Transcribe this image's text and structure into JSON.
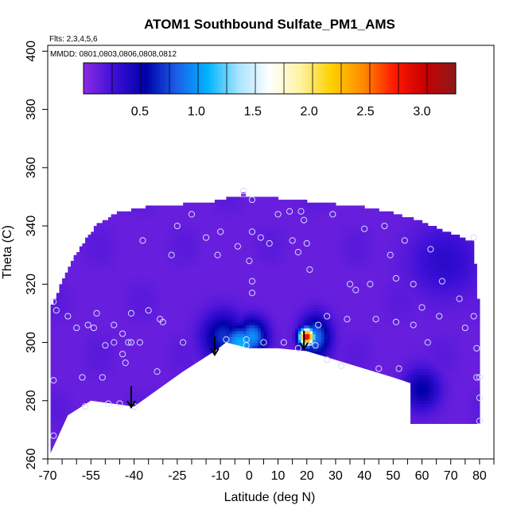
{
  "chart_data": {
    "type": "heatmap",
    "title": "ATOM1 Southbound Sulfate_PM1_AMS",
    "flights_note": "Flts: 2,3,4,5,6",
    "dates_note": "MMDD: 0801,0803,0806,0808,0812",
    "xlabel": "Latitude (deg N)",
    "ylabel": "Theta (C)",
    "xlim": [
      -70,
      85
    ],
    "ylim": [
      260,
      402
    ],
    "x_tick_values": [
      -70,
      -55,
      -40,
      -25,
      -10,
      0,
      10,
      20,
      30,
      40,
      50,
      60,
      70,
      80
    ],
    "x_tick_labels": [
      "-70",
      "-55",
      "-40",
      "-25",
      "-10",
      "0",
      "10",
      "20",
      "30",
      "40",
      "50",
      "60",
      "70",
      "80"
    ],
    "x_minor_ticks": [
      -65,
      -60,
      -50,
      -45,
      -35,
      -30,
      -20,
      -15,
      -5,
      5,
      15,
      25,
      35,
      45,
      55,
      65,
      75,
      85
    ],
    "y_tick_values": [
      260,
      280,
      300,
      320,
      340,
      360,
      380,
      400
    ],
    "y_tick_labels": [
      "260",
      "280",
      "300",
      "320",
      "340",
      "360",
      "380",
      "400"
    ],
    "colorbar": {
      "range": [
        0,
        3.3
      ],
      "tick_values": [
        0.5,
        1.0,
        1.5,
        2.0,
        2.5,
        3.0
      ],
      "tick_labels": [
        "0.5",
        "1.0",
        "1.5",
        "2.0",
        "2.5",
        "3.0"
      ],
      "colors": [
        "#8a2be2",
        "#3b0fd6",
        "#0000a8",
        "#1a5fe8",
        "#00b4ff",
        "#a8e4ff",
        "#ffffff",
        "#fff2a0",
        "#ffd000",
        "#ff8c00",
        "#ff1a00",
        "#c80000",
        "#8b1a1a"
      ]
    },
    "background_value": 0.12,
    "envelope_top": [
      [
        -69,
        312
      ],
      [
        -66,
        318
      ],
      [
        -62,
        327
      ],
      [
        -58,
        333
      ],
      [
        -53,
        340
      ],
      [
        -46,
        344
      ],
      [
        -36,
        346
      ],
      [
        -23,
        347
      ],
      [
        -12,
        348
      ],
      [
        -5,
        350
      ],
      [
        2,
        350
      ],
      [
        10,
        349
      ],
      [
        20,
        348
      ],
      [
        30,
        347
      ],
      [
        40,
        346
      ],
      [
        50,
        344
      ],
      [
        60,
        341
      ],
      [
        70,
        337
      ],
      [
        78,
        334
      ],
      [
        79,
        320
      ],
      [
        80,
        310
      ],
      [
        80,
        296
      ],
      [
        80,
        285
      ],
      [
        80,
        271
      ]
    ],
    "terrain": [
      [
        -69,
        262
      ],
      [
        -63,
        275
      ],
      [
        -55,
        280
      ],
      [
        -40,
        278
      ],
      [
        -23,
        290
      ],
      [
        -12,
        297
      ],
      [
        -8,
        300
      ],
      [
        0,
        298
      ],
      [
        10,
        298
      ],
      [
        20,
        297
      ],
      [
        30,
        294
      ],
      [
        40,
        291
      ],
      [
        50,
        288
      ],
      [
        56,
        286
      ],
      [
        56,
        272
      ],
      [
        80,
        272
      ]
    ],
    "features": [
      {
        "lat": -3,
        "theta": 300,
        "value": 1.1,
        "sx": 7,
        "sy": 6
      },
      {
        "lat": -9,
        "theta": 302,
        "value": 0.7,
        "sx": 7,
        "sy": 8
      },
      {
        "lat": 1,
        "theta": 302,
        "value": 1.0,
        "sx": 5,
        "sy": 6
      },
      {
        "lat": 20,
        "theta": 302,
        "value": 3.0,
        "sx": 2.6,
        "sy": 3
      },
      {
        "lat": 23,
        "theta": 302,
        "value": 0.9,
        "sx": 5,
        "sy": 7
      },
      {
        "lat": 60,
        "theta": 284,
        "value": 0.55,
        "sx": 6,
        "sy": 7
      },
      {
        "lat": 68,
        "theta": 328,
        "value": 0.35,
        "sx": 12,
        "sy": 12
      }
    ],
    "clean_regions": [
      {
        "lat": -6,
        "theta": 317,
        "value": 0.04,
        "sx": 10,
        "sy": 10
      },
      {
        "lat": 20,
        "theta": 318,
        "value": 0.05,
        "sx": 6,
        "sy": 9
      }
    ],
    "flight_points": [
      [
        -68,
        268
      ],
      [
        -68,
        287
      ],
      [
        -68,
        314
      ],
      [
        -67,
        311
      ],
      [
        -63,
        309
      ],
      [
        -60,
        305
      ],
      [
        -58,
        288
      ],
      [
        -57,
        278
      ],
      [
        -56,
        306
      ],
      [
        -54,
        305
      ],
      [
        -53,
        310
      ],
      [
        -51,
        288
      ],
      [
        -50,
        299
      ],
      [
        -49,
        279
      ],
      [
        -47,
        306
      ],
      [
        -47,
        300
      ],
      [
        -45,
        279
      ],
      [
        -44,
        303
      ],
      [
        -44,
        296
      ],
      [
        -43,
        293
      ],
      [
        -42,
        300
      ],
      [
        -41,
        310
      ],
      [
        -41,
        300
      ],
      [
        -40,
        278
      ],
      [
        -38,
        300
      ],
      [
        -37,
        335
      ],
      [
        -35,
        311
      ],
      [
        -32,
        290
      ],
      [
        -31,
        308
      ],
      [
        -30,
        307
      ],
      [
        -27,
        330
      ],
      [
        -25,
        340
      ],
      [
        -23,
        300
      ],
      [
        -20,
        344
      ],
      [
        -15,
        336
      ],
      [
        -11,
        330
      ],
      [
        -10,
        338
      ],
      [
        -8,
        301
      ],
      [
        -4,
        333
      ],
      [
        -2,
        352
      ],
      [
        -1,
        299
      ],
      [
        -1,
        301
      ],
      [
        0,
        328
      ],
      [
        1,
        349
      ],
      [
        1,
        338
      ],
      [
        1,
        321
      ],
      [
        1,
        317
      ],
      [
        4,
        336
      ],
      [
        5,
        300
      ],
      [
        7,
        334
      ],
      [
        10,
        344
      ],
      [
        12,
        300
      ],
      [
        14,
        345
      ],
      [
        15,
        335
      ],
      [
        17,
        298
      ],
      [
        17,
        331
      ],
      [
        18,
        345
      ],
      [
        19,
        342
      ],
      [
        20,
        334
      ],
      [
        21,
        325
      ],
      [
        21,
        300
      ],
      [
        23,
        299
      ],
      [
        24,
        306
      ],
      [
        27,
        309
      ],
      [
        27,
        294
      ],
      [
        29,
        344
      ],
      [
        32,
        292
      ],
      [
        34,
        308
      ],
      [
        35,
        320
      ],
      [
        37,
        318
      ],
      [
        40,
        339
      ],
      [
        42,
        320
      ],
      [
        44,
        308
      ],
      [
        45,
        291
      ],
      [
        47,
        340
      ],
      [
        49,
        330
      ],
      [
        51,
        307
      ],
      [
        51,
        322
      ],
      [
        52,
        291
      ],
      [
        54,
        335
      ],
      [
        57,
        320
      ],
      [
        57,
        306
      ],
      [
        60,
        312
      ],
      [
        62,
        300
      ],
      [
        63,
        332
      ],
      [
        66,
        309
      ],
      [
        67,
        321
      ],
      [
        73,
        315
      ],
      [
        75,
        305
      ],
      [
        78,
        336
      ],
      [
        78,
        309
      ],
      [
        79,
        298
      ],
      [
        79,
        288
      ],
      [
        80,
        288
      ],
      [
        80,
        281
      ],
      [
        80,
        273
      ]
    ],
    "arrows": [
      {
        "lat": -41,
        "theta_from": 285,
        "theta_to": 278
      },
      {
        "lat": -12,
        "theta_from": 302,
        "theta_to": 296
      },
      {
        "lat": 19,
        "theta_from": 304,
        "theta_to": 298
      }
    ],
    "stray_marks": [
      [
        -2,
        351
      ]
    ]
  }
}
